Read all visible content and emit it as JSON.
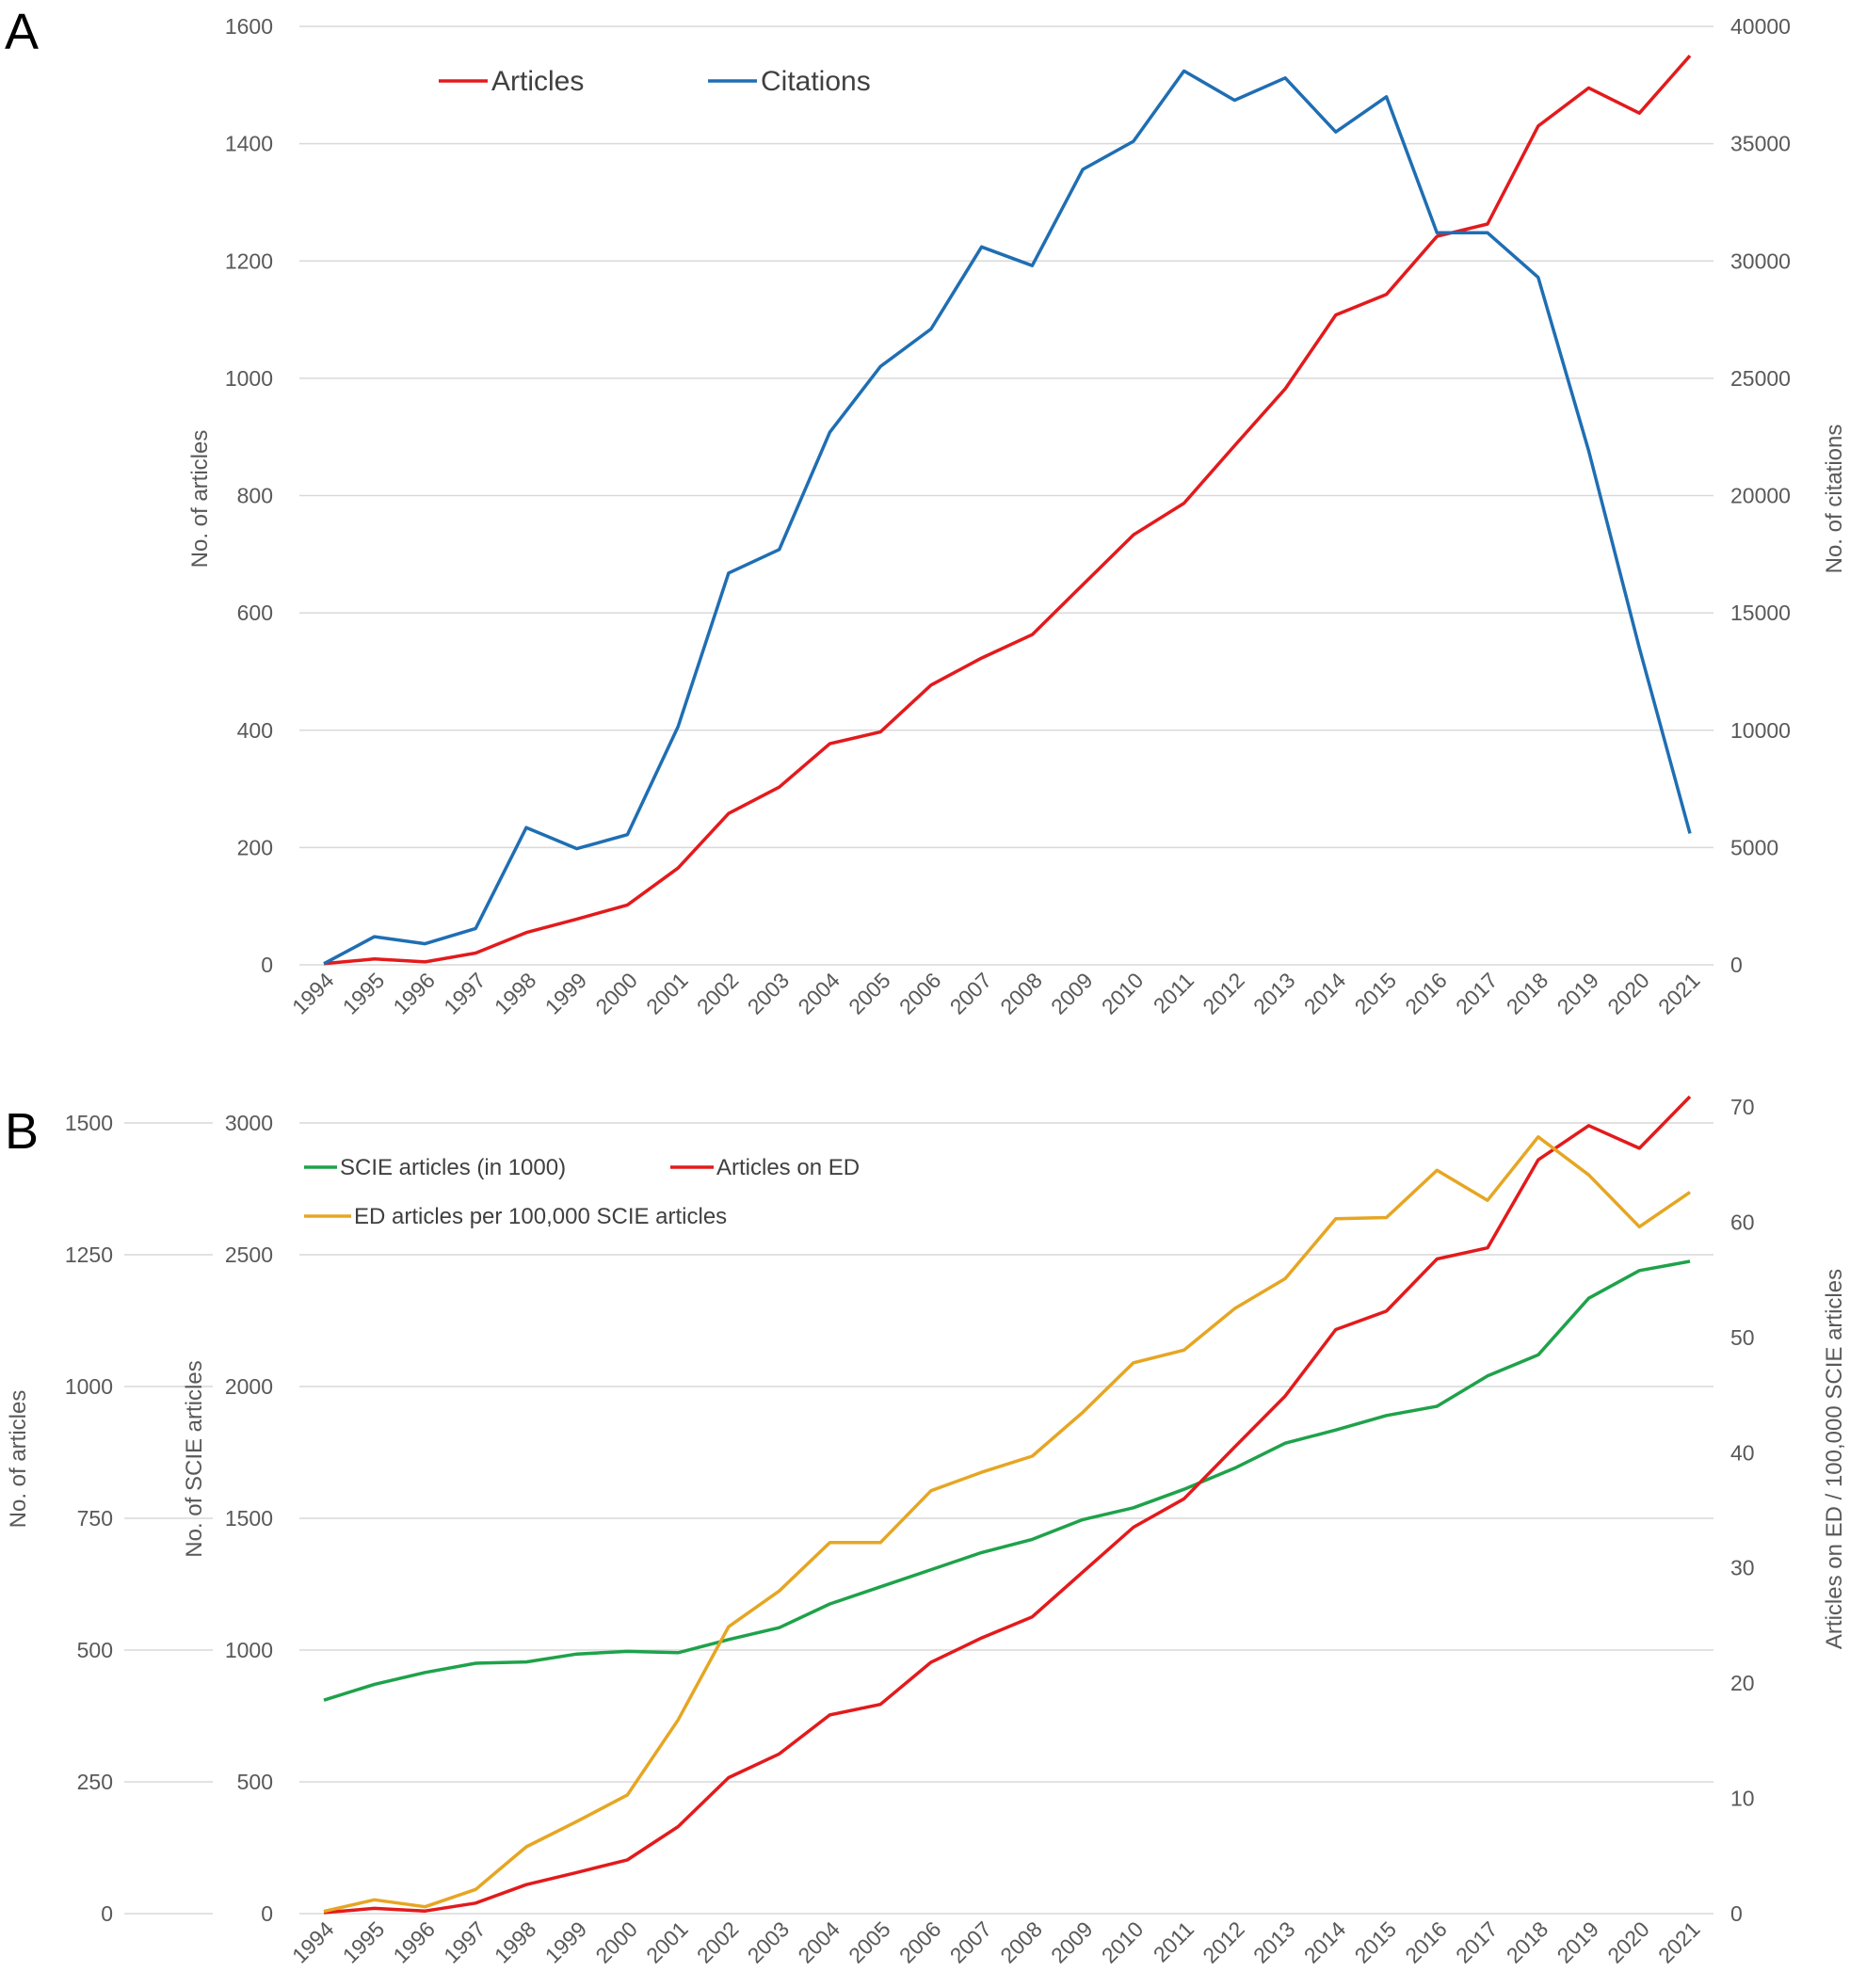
{
  "chart_data": [
    {
      "panel_label": "A",
      "type": "line",
      "categories": [
        "1994",
        "1995",
        "1996",
        "1997",
        "1998",
        "1999",
        "2000",
        "2001",
        "2002",
        "2003",
        "2004",
        "2005",
        "2006",
        "2007",
        "2008",
        "2009",
        "2010",
        "2011",
        "2012",
        "2013",
        "2014",
        "2015",
        "2016",
        "2017",
        "2018",
        "2019",
        "2020",
        "2021"
      ],
      "left_axis": {
        "title": "No. of articles",
        "range": [
          0,
          1600
        ],
        "ticks": [
          "0",
          "200",
          "400",
          "600",
          "800",
          "1000",
          "1200",
          "1400",
          "1600"
        ]
      },
      "right_axis": {
        "title": "No. of citations",
        "range": [
          0,
          40000
        ],
        "ticks": [
          "0",
          "5000",
          "10000",
          "15000",
          "20000",
          "25000",
          "30000",
          "35000",
          "40000"
        ]
      },
      "grid": true,
      "legend_position": "top-left",
      "series": [
        {
          "name": "Articles",
          "color": "#e31a1c",
          "axis": "left",
          "values": [
            2,
            10,
            5,
            20,
            55,
            78,
            102,
            165,
            258,
            303,
            377,
            397,
            477,
            523,
            563,
            648,
            733,
            787,
            885,
            982,
            1108,
            1143,
            1242,
            1263,
            1430,
            1495,
            1452,
            1550
          ]
        },
        {
          "name": "Citations",
          "color": "#1f6eb3",
          "axis": "right",
          "values": [
            50,
            1200,
            900,
            1550,
            5850,
            4950,
            5550,
            10150,
            16700,
            17700,
            22700,
            25500,
            27100,
            30600,
            29800,
            33900,
            35100,
            38100,
            36850,
            37800,
            35500,
            37000,
            31200,
            31200,
            29300,
            21900,
            13500,
            5600
          ]
        }
      ]
    },
    {
      "panel_label": "B",
      "type": "line",
      "categories": [
        "1994",
        "1995",
        "1996",
        "1997",
        "1998",
        "1999",
        "2000",
        "2001",
        "2002",
        "2003",
        "2004",
        "2005",
        "2006",
        "2007",
        "2008",
        "2009",
        "2010",
        "2011",
        "2012",
        "2013",
        "2014",
        "2015",
        "2016",
        "2017",
        "2018",
        "2019",
        "2020",
        "2021"
      ],
      "outer_left_axis": {
        "title": "No. of articles",
        "range": [
          0,
          1500
        ],
        "ticks": [
          "0",
          "250",
          "500",
          "750",
          "1000",
          "1250",
          "1500"
        ]
      },
      "inner_left_axis": {
        "title": "No. of SCIE articles",
        "range": [
          0,
          3000
        ],
        "ticks": [
          "0",
          "500",
          "1000",
          "1500",
          "2000",
          "2500",
          "3000"
        ]
      },
      "right_axis": {
        "title": "Articles on ED / 100,000 SCIE articles",
        "range": [
          0,
          70
        ],
        "ticks": [
          "0",
          "10",
          "20",
          "30",
          "40",
          "50",
          "60",
          "70"
        ]
      },
      "grid": true,
      "legend_position": "top-left",
      "series": [
        {
          "name": "SCIE articles  (in 1000)",
          "color": "#1ea24a",
          "axis": "inner_left",
          "values": [
            810,
            870,
            915,
            950,
            955,
            985,
            995,
            990,
            1040,
            1085,
            1175,
            1240,
            1305,
            1370,
            1420,
            1495,
            1540,
            1610,
            1690,
            1785,
            1835,
            1890,
            1925,
            2040,
            2120,
            2335,
            2440,
            2475
          ]
        },
        {
          "name": "Articles on ED",
          "color": "#e31a1c",
          "axis": "outer_left",
          "values": [
            2,
            10,
            5,
            20,
            55,
            78,
            102,
            165,
            258,
            303,
            377,
            397,
            477,
            523,
            563,
            648,
            733,
            787,
            885,
            982,
            1108,
            1143,
            1242,
            1263,
            1430,
            1495,
            1452,
            1550
          ]
        },
        {
          "name": "ED articles per  100,000 SCIE articles",
          "color": "#e6a623",
          "axis": "right",
          "values": [
            0.2,
            1.2,
            0.6,
            2.1,
            5.8,
            8.0,
            10.3,
            16.8,
            24.9,
            28.0,
            32.2,
            32.2,
            36.7,
            38.3,
            39.7,
            43.5,
            47.8,
            48.9,
            52.5,
            55.1,
            60.3,
            60.4,
            64.5,
            61.9,
            67.4,
            64.1,
            59.6,
            62.6
          ]
        }
      ]
    }
  ]
}
